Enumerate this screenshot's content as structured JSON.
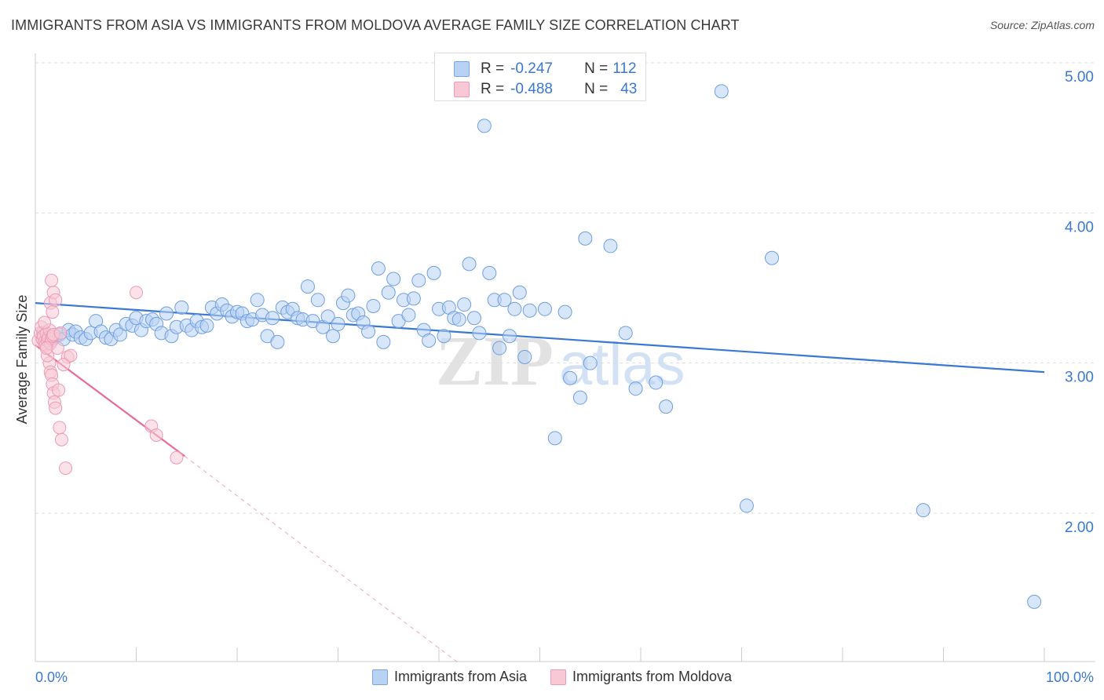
{
  "title": "IMMIGRANTS FROM ASIA VS IMMIGRANTS FROM MOLDOVA AVERAGE FAMILY SIZE CORRELATION CHART",
  "source": "Source: ZipAtlas.com",
  "colors": {
    "asia": "#3a78d6",
    "asia_fill": "#b8d2f4",
    "moldova": "#e86a95",
    "moldova_fill": "#f8c8d6",
    "axis_label_blue": "#3a78d6",
    "grid": "#dddddd"
  },
  "stats": {
    "asia": {
      "r_label": "R =",
      "r_value": "-0.247",
      "n_label": "N =",
      "n_value": "112"
    },
    "moldova": {
      "r_label": "R =",
      "r_value": "-0.488",
      "n_label": "N =",
      "n_value": "43"
    }
  },
  "watermark": {
    "zip": "ZIP",
    "atlas": "atlas"
  },
  "chart_data": {
    "type": "scatter",
    "title": "IMMIGRANTS FROM ASIA VS IMMIGRANTS FROM MOLDOVA AVERAGE FAMILY SIZE CORRELATION CHART",
    "xlabel": "",
    "ylabel": "Average Family Size",
    "xlim": [
      0,
      100
    ],
    "ylim": [
      1.0,
      5.0
    ],
    "x_tick_labels": [
      "0.0%",
      "100.0%"
    ],
    "y_ticks": [
      2.0,
      3.0,
      4.0,
      5.0
    ],
    "y_tick_labels": [
      "2.00",
      "3.00",
      "4.00",
      "5.00"
    ],
    "grid": true,
    "legend_position": "bottom",
    "series": [
      {
        "name": "Immigrants from Asia",
        "color": "#3a78d6",
        "trend": {
          "x": [
            0,
            100
          ],
          "y": [
            3.4,
            2.94
          ]
        },
        "points": [
          [
            0.8,
            3.2
          ],
          [
            1.2,
            3.17
          ],
          [
            1.6,
            3.15
          ],
          [
            2.0,
            3.18
          ],
          [
            2.4,
            3.19
          ],
          [
            2.8,
            3.16
          ],
          [
            3.3,
            3.22
          ],
          [
            3.7,
            3.19
          ],
          [
            4.0,
            3.21
          ],
          [
            4.5,
            3.17
          ],
          [
            5.0,
            3.16
          ],
          [
            5.5,
            3.2
          ],
          [
            6.0,
            3.28
          ],
          [
            6.5,
            3.21
          ],
          [
            7.0,
            3.17
          ],
          [
            7.5,
            3.16
          ],
          [
            8.0,
            3.22
          ],
          [
            8.4,
            3.19
          ],
          [
            9.0,
            3.26
          ],
          [
            9.6,
            3.25
          ],
          [
            10.0,
            3.3
          ],
          [
            10.5,
            3.22
          ],
          [
            11.0,
            3.28
          ],
          [
            11.6,
            3.29
          ],
          [
            12.0,
            3.26
          ],
          [
            12.5,
            3.2
          ],
          [
            13.0,
            3.33
          ],
          [
            13.5,
            3.18
          ],
          [
            14.0,
            3.24
          ],
          [
            14.5,
            3.37
          ],
          [
            15.0,
            3.25
          ],
          [
            15.5,
            3.22
          ],
          [
            16.0,
            3.28
          ],
          [
            16.5,
            3.24
          ],
          [
            17.0,
            3.25
          ],
          [
            17.5,
            3.37
          ],
          [
            18.0,
            3.33
          ],
          [
            18.5,
            3.39
          ],
          [
            19.0,
            3.35
          ],
          [
            19.5,
            3.31
          ],
          [
            20.0,
            3.34
          ],
          [
            20.5,
            3.33
          ],
          [
            21.0,
            3.28
          ],
          [
            21.5,
            3.29
          ],
          [
            22.0,
            3.42
          ],
          [
            22.5,
            3.32
          ],
          [
            23.0,
            3.18
          ],
          [
            23.5,
            3.3
          ],
          [
            24.0,
            3.14
          ],
          [
            24.5,
            3.37
          ],
          [
            25.0,
            3.34
          ],
          [
            25.5,
            3.36
          ],
          [
            26.0,
            3.3
          ],
          [
            26.5,
            3.29
          ],
          [
            27.0,
            3.51
          ],
          [
            27.5,
            3.28
          ],
          [
            28.0,
            3.42
          ],
          [
            28.5,
            3.24
          ],
          [
            29.0,
            3.31
          ],
          [
            29.5,
            3.18
          ],
          [
            30.0,
            3.26
          ],
          [
            30.5,
            3.4
          ],
          [
            31.0,
            3.45
          ],
          [
            31.5,
            3.32
          ],
          [
            32.0,
            3.33
          ],
          [
            32.5,
            3.27
          ],
          [
            33.0,
            3.21
          ],
          [
            33.5,
            3.38
          ],
          [
            34.0,
            3.63
          ],
          [
            34.5,
            3.14
          ],
          [
            35.0,
            3.47
          ],
          [
            35.5,
            3.56
          ],
          [
            36.0,
            3.28
          ],
          [
            36.5,
            3.42
          ],
          [
            37.0,
            3.32
          ],
          [
            37.5,
            3.43
          ],
          [
            38.0,
            3.55
          ],
          [
            38.5,
            3.22
          ],
          [
            39.0,
            3.15
          ],
          [
            39.5,
            3.6
          ],
          [
            40.0,
            3.36
          ],
          [
            40.5,
            3.18
          ],
          [
            41.0,
            3.37
          ],
          [
            41.5,
            3.3
          ],
          [
            42.0,
            3.29
          ],
          [
            42.5,
            3.39
          ],
          [
            43.0,
            3.66
          ],
          [
            43.5,
            3.3
          ],
          [
            44.0,
            3.2
          ],
          [
            44.5,
            4.58
          ],
          [
            45.0,
            3.6
          ],
          [
            45.5,
            3.42
          ],
          [
            46.0,
            3.1
          ],
          [
            46.5,
            3.42
          ],
          [
            47.0,
            3.18
          ],
          [
            47.5,
            3.36
          ],
          [
            48.0,
            3.47
          ],
          [
            48.5,
            3.04
          ],
          [
            49.0,
            3.35
          ],
          [
            50.5,
            3.36
          ],
          [
            51.5,
            2.5
          ],
          [
            52.5,
            3.34
          ],
          [
            53.0,
            2.9
          ],
          [
            54.0,
            2.77
          ],
          [
            54.5,
            3.83
          ],
          [
            55.0,
            3.0
          ],
          [
            57.0,
            3.78
          ],
          [
            58.5,
            3.2
          ],
          [
            59.5,
            2.83
          ],
          [
            61.5,
            2.87
          ],
          [
            62.5,
            2.71
          ],
          [
            68.0,
            4.81
          ],
          [
            70.5,
            2.05
          ],
          [
            88.0,
            2.02
          ],
          [
            99.0,
            1.41
          ],
          [
            73.0,
            3.7
          ]
        ]
      },
      {
        "name": "Immigrants from Moldova",
        "color": "#e86a95",
        "trend": {
          "x": [
            0,
            14.8
          ],
          "y": [
            3.12,
            2.38
          ]
        },
        "trend_extension": {
          "x": [
            14.8,
            42.0
          ],
          "y": [
            2.38,
            1.0
          ]
        },
        "points": [
          [
            0.3,
            3.15
          ],
          [
            0.5,
            3.2
          ],
          [
            0.6,
            3.24
          ],
          [
            0.7,
            3.16
          ],
          [
            0.8,
            3.18
          ],
          [
            0.9,
            3.14
          ],
          [
            1.0,
            3.12
          ],
          [
            1.1,
            3.2
          ],
          [
            1.2,
            3.15
          ],
          [
            1.3,
            3.17
          ],
          [
            1.4,
            3.22
          ],
          [
            1.5,
            3.13
          ],
          [
            1.6,
            3.16
          ],
          [
            1.7,
            3.18
          ],
          [
            1.8,
            3.19
          ],
          [
            1.5,
            3.4
          ],
          [
            1.6,
            3.55
          ],
          [
            1.7,
            3.34
          ],
          [
            1.8,
            3.47
          ],
          [
            2.0,
            3.42
          ],
          [
            2.2,
            3.1
          ],
          [
            1.4,
            3.0
          ],
          [
            1.5,
            2.94
          ],
          [
            1.6,
            2.92
          ],
          [
            1.7,
            2.86
          ],
          [
            1.8,
            2.8
          ],
          [
            1.9,
            2.74
          ],
          [
            2.0,
            2.7
          ],
          [
            2.3,
            2.82
          ],
          [
            2.4,
            2.57
          ],
          [
            2.6,
            2.49
          ],
          [
            3.0,
            2.3
          ],
          [
            3.2,
            3.04
          ],
          [
            3.5,
            3.05
          ],
          [
            2.8,
            2.99
          ],
          [
            10.0,
            3.47
          ],
          [
            11.5,
            2.58
          ],
          [
            12.0,
            2.52
          ],
          [
            14.0,
            2.37
          ],
          [
            1.2,
            3.05
          ],
          [
            2.5,
            3.2
          ],
          [
            0.9,
            3.27
          ],
          [
            1.1,
            3.1
          ]
        ]
      }
    ]
  },
  "legend": {
    "asia_label": "Immigrants from Asia",
    "moldova_label": "Immigrants from Moldova"
  }
}
